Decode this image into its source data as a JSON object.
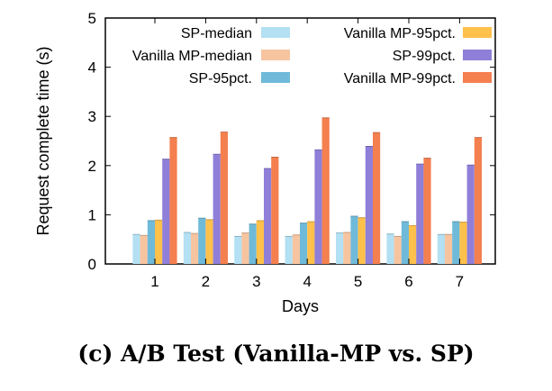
{
  "caption": "(c) A/B Test (Vanilla-MP vs. SP)",
  "chart_data": {
    "type": "bar",
    "xlabel": "Days",
    "ylabel": "Request complete time (s)",
    "ylim": [
      0,
      5
    ],
    "yticks": [
      "0",
      "1",
      "2",
      "3",
      "4",
      "5"
    ],
    "categories": [
      "1",
      "2",
      "3",
      "4",
      "5",
      "6",
      "7"
    ],
    "grid": false,
    "legend_position": "top",
    "series": [
      {
        "name": "SP-median",
        "color": "#b3e0f2",
        "values": [
          0.6,
          0.64,
          0.56,
          0.56,
          0.63,
          0.61,
          0.6
        ]
      },
      {
        "name": "Vanilla MP-median",
        "color": "#f7c4a0",
        "values": [
          0.58,
          0.62,
          0.63,
          0.59,
          0.64,
          0.56,
          0.6
        ]
      },
      {
        "name": "SP-95pct.",
        "color": "#6fbad9",
        "values": [
          0.88,
          0.93,
          0.81,
          0.83,
          0.97,
          0.86,
          0.86
        ]
      },
      {
        "name": "Vanilla MP-95pct.",
        "color": "#ffc04c",
        "values": [
          0.89,
          0.9,
          0.88,
          0.86,
          0.94,
          0.78,
          0.85
        ]
      },
      {
        "name": "SP-99pct.",
        "color": "#8f7fd9",
        "values": [
          2.13,
          2.23,
          1.94,
          2.32,
          2.39,
          2.03,
          2.01
        ]
      },
      {
        "name": "Vanilla MP-99pct.",
        "color": "#f47f4f",
        "values": [
          2.57,
          2.68,
          2.17,
          2.97,
          2.67,
          2.15,
          2.57
        ]
      }
    ]
  }
}
